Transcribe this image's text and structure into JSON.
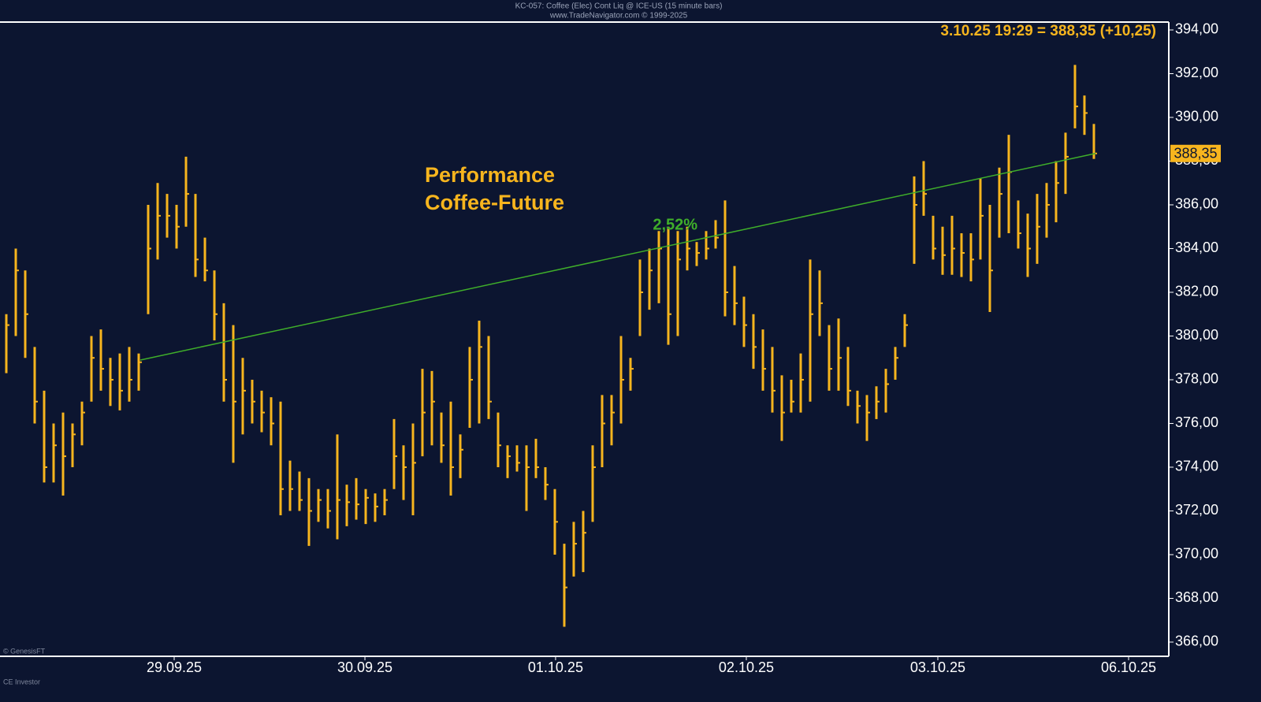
{
  "chart_data": {
    "type": "ohlc",
    "header": "KC-057: Coffee (Elec) Cont Liq @ ICE-US (15 minute bars)",
    "source": "www.TradeNavigator.com © 1999-2025",
    "title_lines": [
      "Performance",
      "Coffee-Future"
    ],
    "quote": "3.10.25 19:29 = 388,35 (+10,25)",
    "footer": [
      "© GenesisFT",
      "CE Investor"
    ],
    "color": "#f7b51e",
    "background": "#0c1530",
    "x": [
      0,
      1,
      2,
      3,
      4,
      5,
      6,
      7,
      8,
      9,
      10,
      11,
      12,
      13,
      14,
      15,
      16,
      17,
      18,
      19,
      20,
      21,
      22,
      23,
      24,
      25,
      26,
      27,
      28,
      29,
      30,
      31,
      32,
      33,
      34,
      35,
      36,
      37,
      38,
      39,
      40,
      41,
      42,
      43,
      44,
      45,
      46,
      47,
      48,
      49,
      50,
      51,
      52,
      53,
      54,
      55,
      56,
      57,
      58,
      59,
      60,
      61,
      62,
      63,
      64,
      65,
      66,
      67,
      68,
      69,
      70,
      71,
      72,
      73,
      74,
      75,
      76,
      77,
      78,
      79,
      80,
      81,
      82,
      83,
      84,
      85,
      86,
      87,
      88,
      89,
      90,
      91,
      92,
      93,
      94,
      95,
      96,
      97,
      98,
      99,
      100,
      101,
      102,
      103,
      104,
      105,
      106,
      107,
      108,
      109,
      110,
      111,
      112,
      113,
      114,
      115
    ],
    "high": [
      381,
      384,
      383,
      379.5,
      377.5,
      376,
      376.5,
      376,
      377,
      380,
      380.3,
      379,
      379.2,
      379.5,
      379.2,
      386,
      387,
      386.5,
      386,
      388.2,
      386.5,
      384.5,
      383,
      381.5,
      380.5,
      379,
      378,
      377.5,
      377.2,
      377,
      374.3,
      373.8,
      373.5,
      373,
      373,
      375.5,
      373.2,
      373.5,
      373,
      372.8,
      373,
      376.2,
      375,
      376,
      378.5,
      378.4,
      376.5,
      377,
      375.5,
      379.5,
      380.7,
      380,
      376.5,
      375,
      375,
      375,
      375.3,
      374,
      373,
      370.5,
      371.5,
      372,
      375,
      377.3,
      377.3,
      380,
      379,
      383.5,
      384,
      384.8,
      385,
      384.8,
      385,
      384.3,
      384.8,
      385.3,
      386.2,
      383.2,
      381.8,
      381,
      380.3,
      379.5,
      378.2,
      378,
      379.2,
      383.5,
      383,
      380.5,
      380.8,
      379.5,
      377.5,
      377.3,
      377.7,
      378.5,
      379.5,
      381,
      387.3,
      388,
      385.5,
      385,
      385.5,
      384.7,
      384.7,
      387.2,
      386,
      387.7,
      389.2,
      386.2,
      385.6,
      386.5,
      387,
      388,
      389.3,
      392.4,
      391,
      389.7
    ],
    "low": [
      378.3,
      380,
      379,
      376,
      373.3,
      373.3,
      372.7,
      374,
      375,
      377,
      377.5,
      376.8,
      376.6,
      377,
      377.5,
      381,
      383.5,
      384.5,
      384,
      385,
      382.7,
      382.5,
      379.8,
      377,
      374.2,
      375.5,
      376,
      375.6,
      375,
      371.8,
      372,
      372,
      370.4,
      371.5,
      371.2,
      370.7,
      371.3,
      371.6,
      371.4,
      371.5,
      371.8,
      373,
      372.5,
      371.8,
      374.5,
      375,
      374.2,
      372.7,
      373.5,
      375.8,
      376,
      376.2,
      374,
      373.5,
      373.8,
      372,
      373.5,
      372.5,
      370,
      366.7,
      369,
      369.2,
      371.5,
      374,
      375,
      376,
      377.5,
      380,
      381.2,
      381.5,
      379.6,
      380,
      383,
      383.2,
      383.5,
      384,
      380.9,
      380.5,
      379.5,
      378.5,
      377.5,
      376.5,
      375.2,
      376.5,
      376.5,
      377,
      380,
      377.5,
      377.5,
      376.8,
      376,
      375.2,
      376.2,
      376.5,
      378,
      379.5,
      383.3,
      385.5,
      383.5,
      382.8,
      382.8,
      382.7,
      382.5,
      383.5,
      381.1,
      384.5,
      384.7,
      384,
      382.7,
      383.3,
      384.5,
      385.2,
      386.5,
      389.5,
      389.2,
      388.1
    ],
    "close": [
      380.5,
      383,
      381,
      377,
      374,
      375,
      374.5,
      375.5,
      376.5,
      379,
      378.5,
      378,
      377.5,
      378,
      378.8,
      384,
      385.5,
      385.5,
      385,
      386.5,
      383.5,
      383,
      381,
      378,
      377,
      377.5,
      377,
      376.5,
      376,
      373,
      373,
      372.5,
      372,
      372.5,
      372,
      372.5,
      372.4,
      372.3,
      372.6,
      372.2,
      372.5,
      374.5,
      374,
      374.2,
      376.5,
      377,
      375,
      374,
      374.8,
      378,
      379.5,
      377,
      375,
      374.5,
      374.2,
      374,
      374,
      373.2,
      371.5,
      368.5,
      370.5,
      371,
      374,
      376,
      376.5,
      378,
      378.5,
      382,
      383,
      384,
      381,
      383.5,
      384,
      383.8,
      384,
      384.5,
      382,
      381.5,
      380.5,
      379.5,
      378.5,
      377.5,
      376.5,
      377,
      378,
      381,
      381.5,
      378.5,
      379,
      377.5,
      376.8,
      376.5,
      377,
      377.8,
      379,
      380.5,
      386,
      386.5,
      384,
      383.7,
      384,
      383.8,
      383.5,
      385.5,
      383,
      386.5,
      387.5,
      384.7,
      384,
      385,
      386,
      387,
      388.2,
      390.5,
      390.2,
      388.35
    ],
    "trendline": {
      "x": [
        14.17,
        115.17
      ],
      "y": [
        378.9,
        388.35
      ],
      "label": "2,52%",
      "color": "#3fae2a"
    },
    "last_price": {
      "value": 388.35,
      "label": "388,35"
    },
    "xlim": [
      -0.667,
      122.92
    ],
    "xticks": [
      {
        "value": 17.75,
        "label": "29.09.25"
      },
      {
        "value": 37.92,
        "label": "30.09.25"
      },
      {
        "value": 58.08,
        "label": "01.10.25"
      },
      {
        "value": 78.25,
        "label": "02.10.25"
      },
      {
        "value": 98.5,
        "label": "03.10.25"
      },
      {
        "value": 118.67,
        "label": "06.10.25"
      }
    ],
    "ylim": [
      365.35,
      394.36
    ],
    "yticks": [
      {
        "value": 366,
        "label": "366,00"
      },
      {
        "value": 368,
        "label": "368,00"
      },
      {
        "value": 370,
        "label": "370,00"
      },
      {
        "value": 372,
        "label": "372,00"
      },
      {
        "value": 374,
        "label": "374,00"
      },
      {
        "value": 376,
        "label": "376,00"
      },
      {
        "value": 378,
        "label": "378,00"
      },
      {
        "value": 380,
        "label": "380,00"
      },
      {
        "value": 382,
        "label": "382,00"
      },
      {
        "value": 384,
        "label": "384,00"
      },
      {
        "value": 386,
        "label": "386,00"
      },
      {
        "value": 388,
        "label": "388,00"
      },
      {
        "value": 390,
        "label": "390,00"
      },
      {
        "value": 392,
        "label": "392,00"
      },
      {
        "value": 394,
        "label": "394,00"
      }
    ]
  }
}
